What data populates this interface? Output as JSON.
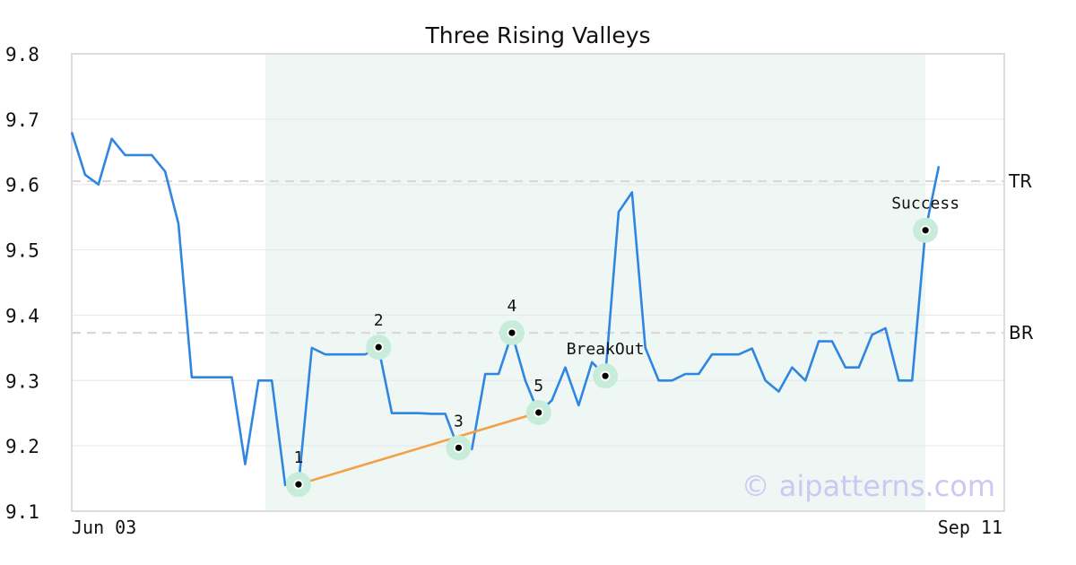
{
  "chart_data": {
    "type": "line",
    "title": "Three Rising Valleys",
    "xlabel": "",
    "ylabel": "",
    "ylim": [
      9.1,
      9.8
    ],
    "yticks": [
      "9.1",
      "9.2",
      "9.3",
      "9.4",
      "9.5",
      "9.6",
      "9.7",
      "9.8"
    ],
    "xticks": {
      "first": "Jun 03",
      "last": "Sep 11"
    },
    "grid": true,
    "series": [
      {
        "color": "#2f86e0",
        "values": [
          9.68,
          9.615,
          9.6,
          9.67,
          9.645,
          9.645,
          9.645,
          9.62,
          9.54,
          9.305,
          9.305,
          9.305,
          9.305,
          9.172,
          9.3,
          9.3,
          9.14,
          9.14,
          9.35,
          9.34,
          9.34,
          9.34,
          9.34,
          9.35,
          9.25,
          9.25,
          9.25,
          9.249,
          9.249,
          9.195,
          9.195,
          9.31,
          9.31,
          9.372,
          9.3,
          9.25,
          9.27,
          9.32,
          9.262,
          9.328,
          9.307,
          9.558,
          9.588,
          9.35,
          9.3,
          9.3,
          9.31,
          9.31,
          9.34,
          9.34,
          9.34,
          9.349,
          9.3,
          9.283,
          9.32,
          9.3,
          9.36,
          9.36,
          9.32,
          9.32,
          9.37,
          9.38,
          9.3,
          9.3,
          9.53,
          9.628
        ]
      }
    ],
    "pattern_zone": {
      "start_index": 15,
      "end_index": 64,
      "color": "#eef7f3"
    },
    "levels": [
      {
        "label": "TR",
        "value": 9.605
      },
      {
        "label": "BR",
        "value": 9.373
      }
    ],
    "trendline": {
      "from_index": 17,
      "from_value": 9.141,
      "to_index": 35,
      "to_value": 9.251,
      "color": "#f3a045"
    },
    "annotations": [
      {
        "label": "1",
        "index": 17,
        "value": 9.141,
        "label_pos": "above"
      },
      {
        "label": "2",
        "index": 23,
        "value": 9.351,
        "label_pos": "above"
      },
      {
        "label": "3",
        "index": 29,
        "value": 9.197,
        "label_pos": "above"
      },
      {
        "label": "4",
        "index": 33,
        "value": 9.373,
        "label_pos": "above"
      },
      {
        "label": "5",
        "index": 35,
        "value": 9.251,
        "label_pos": "above"
      },
      {
        "label": "BreakOut",
        "index": 40,
        "value": 9.307,
        "label_pos": "above"
      },
      {
        "label": "Success",
        "index": 64,
        "value": 9.53,
        "label_pos": "above"
      }
    ],
    "watermark": "© aipatterns.com"
  }
}
